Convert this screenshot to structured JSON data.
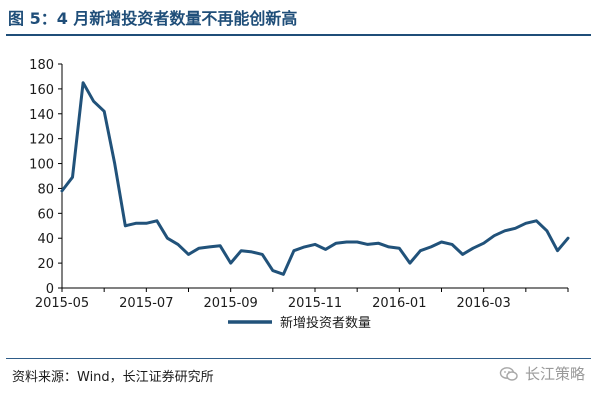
{
  "title": "图 5：4 月新增投资者数量不再能创新高",
  "source": "资料来源：Wind，长江证券研究所",
  "brand": "长江策略",
  "brand_icon": "wechat-icon",
  "colors": {
    "line": "#21527a",
    "title": "#1f4e79",
    "axis": "#000000"
  },
  "chart_data": {
    "type": "line",
    "title": "图 5：4 月新增投资者数量不再能创新高",
    "xlabel": "",
    "ylabel": "",
    "ylim": [
      0,
      180
    ],
    "yticks": [
      0,
      20,
      40,
      60,
      80,
      100,
      120,
      140,
      160,
      180
    ],
    "xtick_labels": [
      "2015-05",
      "2015-07",
      "2015-09",
      "2015-11",
      "2016-01",
      "2016-03"
    ],
    "grid": false,
    "legend_position": "bottom",
    "series": [
      {
        "name": "新增投资者数量",
        "values": [
          78,
          89,
          165,
          150,
          142,
          100,
          50,
          52,
          52,
          54,
          40,
          35,
          27,
          32,
          33,
          34,
          20,
          30,
          29,
          27,
          14,
          11,
          30,
          33,
          35,
          31,
          36,
          37,
          37,
          35,
          36,
          33,
          32,
          20,
          30,
          33,
          37,
          35,
          27,
          32,
          36,
          42,
          46,
          48,
          52,
          54,
          46,
          30,
          40
        ]
      }
    ]
  }
}
